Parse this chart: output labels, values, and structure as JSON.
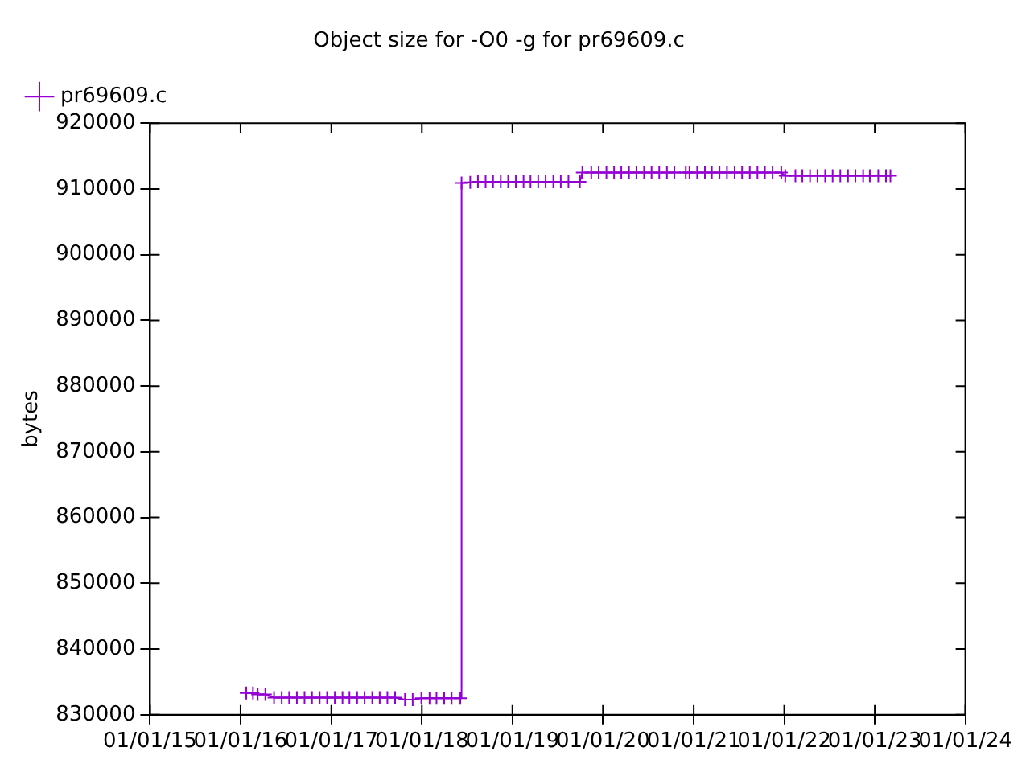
{
  "chart_data": {
    "type": "line",
    "title": "Object size for -O0 -g for pr69609.c",
    "ylabel": "bytes",
    "x": [
      "2016-01-24",
      "2016-02-20",
      "2016-03-10",
      "2016-04-10",
      "2016-05-15",
      "2016-06-15",
      "2016-07-15",
      "2016-08-15",
      "2016-09-15",
      "2016-10-15",
      "2016-11-15",
      "2016-12-15",
      "2017-01-15",
      "2017-02-15",
      "2017-03-15",
      "2017-04-15",
      "2017-05-15",
      "2017-06-15",
      "2017-07-15",
      "2017-08-15",
      "2017-09-15",
      "2017-10-25",
      "2017-11-25",
      "2017-12-30",
      "2018-02-01",
      "2018-03-01",
      "2018-04-01",
      "2018-05-01",
      "2018-06-05",
      "2018-06-10",
      "2018-07-15",
      "2018-08-15",
      "2018-09-15",
      "2018-10-15",
      "2018-11-15",
      "2018-12-15",
      "2019-01-15",
      "2019-02-15",
      "2019-03-15",
      "2019-04-15",
      "2019-05-15",
      "2019-06-15",
      "2019-07-15",
      "2019-08-15",
      "2019-09-30",
      "2019-10-10",
      "2019-11-15",
      "2019-12-15",
      "2020-01-15",
      "2020-02-15",
      "2020-03-15",
      "2020-04-15",
      "2020-05-15",
      "2020-06-15",
      "2020-07-15",
      "2020-08-15",
      "2020-09-15",
      "2020-10-15",
      "2020-11-30",
      "2020-12-15",
      "2021-01-15",
      "2021-02-15",
      "2021-03-15",
      "2021-04-15",
      "2021-05-15",
      "2021-06-15",
      "2021-07-15",
      "2021-08-15",
      "2021-09-15",
      "2021-10-15",
      "2021-11-15",
      "2021-12-20",
      "2022-01-05",
      "2022-02-15",
      "2022-03-15",
      "2022-04-15",
      "2022-05-15",
      "2022-06-15",
      "2022-07-15",
      "2022-08-15",
      "2022-09-15",
      "2022-10-15",
      "2022-11-15",
      "2022-12-12",
      "2023-01-15",
      "2023-02-15",
      "2023-03-05"
    ],
    "series": [
      {
        "name": "pr69609.c",
        "color": "#9400d3",
        "values": [
          833300,
          833300,
          833100,
          833100,
          832600,
          832600,
          832600,
          832600,
          832600,
          832600,
          832600,
          832600,
          832600,
          832600,
          832600,
          832600,
          832600,
          832600,
          832600,
          832600,
          832600,
          832300,
          832300,
          832500,
          832500,
          832500,
          832500,
          832500,
          832500,
          910900,
          911000,
          911100,
          911100,
          911100,
          911100,
          911100,
          911100,
          911100,
          911100,
          911100,
          911100,
          911100,
          911100,
          911100,
          911100,
          912500,
          912500,
          912500,
          912500,
          912500,
          912500,
          912500,
          912500,
          912500,
          912500,
          912500,
          912500,
          912500,
          912500,
          912500,
          912500,
          912500,
          912500,
          912500,
          912500,
          912500,
          912500,
          912500,
          912500,
          912500,
          912500,
          912500,
          912000,
          912000,
          912000,
          912000,
          912000,
          912000,
          912000,
          912000,
          912000,
          912000,
          912000,
          912000,
          912000,
          912000,
          912000
        ]
      }
    ],
    "xlim": [
      "2015-01-01",
      "2024-01-01"
    ],
    "xticks": [
      {
        "value": "2015-01-01",
        "label": "01/01/15"
      },
      {
        "value": "2016-01-01",
        "label": "01/01/16"
      },
      {
        "value": "2017-01-01",
        "label": "01/01/17"
      },
      {
        "value": "2018-01-01",
        "label": "01/01/18"
      },
      {
        "value": "2019-01-01",
        "label": "01/01/19"
      },
      {
        "value": "2020-01-01",
        "label": "01/01/20"
      },
      {
        "value": "2021-01-01",
        "label": "01/01/21"
      },
      {
        "value": "2022-01-01",
        "label": "01/01/22"
      },
      {
        "value": "2023-01-01",
        "label": "01/01/23"
      },
      {
        "value": "2024-01-01",
        "label": "01/01/24"
      }
    ],
    "ylim": [
      830000,
      920000
    ],
    "yticks": [
      830000,
      840000,
      850000,
      860000,
      870000,
      880000,
      890000,
      900000,
      910000,
      920000
    ],
    "grid": false,
    "legend": "top left",
    "marker": "cross",
    "line_style": "solid"
  }
}
